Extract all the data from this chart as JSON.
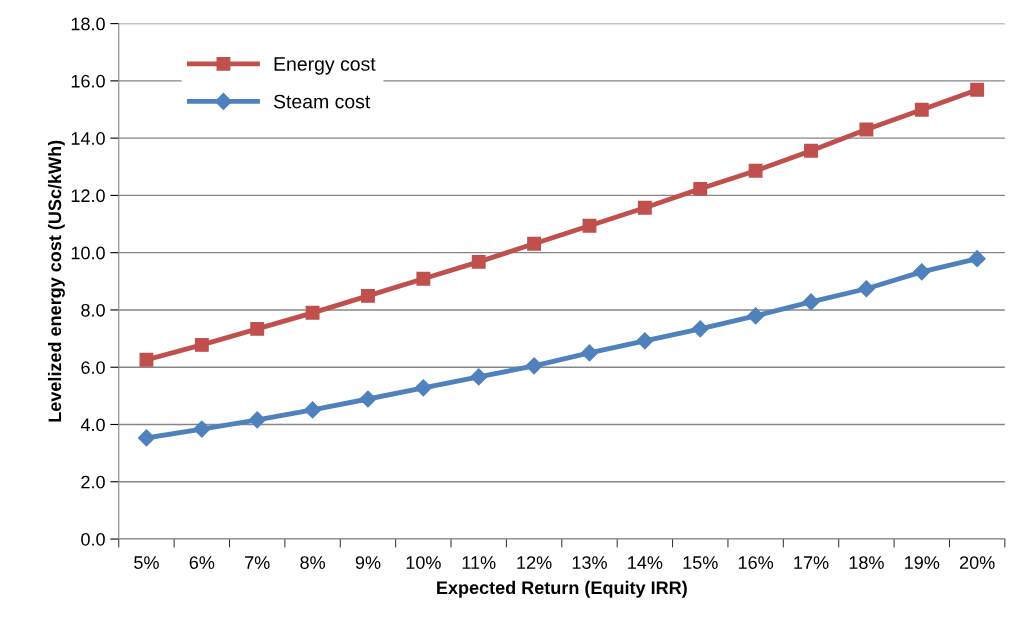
{
  "chart_data": {
    "type": "line",
    "xlabel": "Expected Return (Equity IRR)",
    "ylabel": "Levelized energy cost (USc/kWh)",
    "categories": [
      "5%",
      "6%",
      "7%",
      "8%",
      "9%",
      "10%",
      "11%",
      "12%",
      "13%",
      "14%",
      "15%",
      "16%",
      "17%",
      "18%",
      "19%",
      "20%"
    ],
    "series": [
      {
        "name": "Energy cost",
        "color": "#c0504d",
        "marker": "square",
        "values": [
          6.26,
          6.78,
          7.34,
          7.9,
          8.49,
          9.09,
          9.68,
          10.31,
          10.94,
          11.57,
          12.23,
          12.86,
          13.56,
          14.3,
          14.99,
          15.69
        ]
      },
      {
        "name": "Steam cost",
        "color": "#4f81bd",
        "marker": "diamond",
        "values": [
          3.53,
          3.84,
          4.16,
          4.51,
          4.89,
          5.28,
          5.66,
          6.05,
          6.5,
          6.92,
          7.34,
          7.79,
          8.28,
          8.74,
          9.33,
          9.79
        ]
      }
    ],
    "ylim": [
      0,
      18
    ],
    "yticks": [
      {
        "value": 0,
        "label": "0.0"
      },
      {
        "value": 2,
        "label": "2.0"
      },
      {
        "value": 4,
        "label": "4.0"
      },
      {
        "value": 6,
        "label": "6.0"
      },
      {
        "value": 8,
        "label": "8.0"
      },
      {
        "value": 10,
        "label": "10.0"
      },
      {
        "value": 12,
        "label": "12.0"
      },
      {
        "value": 14,
        "label": "14.0"
      },
      {
        "value": 16,
        "label": "16.0"
      },
      {
        "value": 18,
        "label": "18.0"
      }
    ],
    "grid": "y",
    "legend": "top left"
  }
}
